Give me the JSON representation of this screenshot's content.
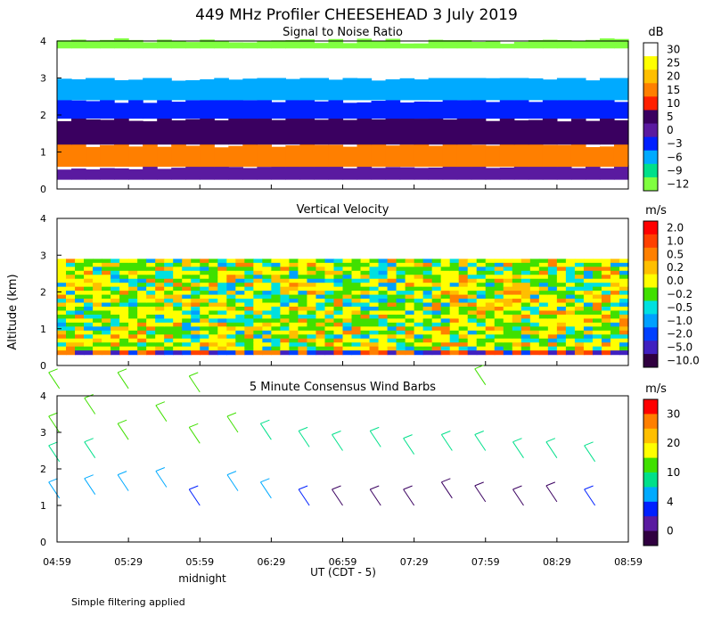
{
  "figure": {
    "title": "449 MHz Profiler CHEESEHEAD  3 July 2019",
    "ylabel": "Altitude (km)",
    "xlabel": "UT  (CDT - 5)",
    "midnight_label": "midnight",
    "footer": "Simple filtering applied"
  },
  "chart_data": [
    {
      "type": "heatmap",
      "title": "Signal to Noise Ratio",
      "colorbar_unit": "dB",
      "colorbar_labels": [
        "30",
        "25",
        "20",
        "15",
        "10",
        "5",
        "0",
        "−3",
        "−6",
        "−9",
        "−12"
      ],
      "colorbar_colors": [
        "#ffffff",
        "#ffff00",
        "#ffbf00",
        "#ff7f00",
        "#ff2000",
        "#3a0060",
        "#5a1aa0",
        "#0020ff",
        "#00aaff",
        "#00e08a",
        "#80ff40"
      ],
      "x_ticks": [
        "04:59",
        "05:29",
        "05:59",
        "06:29",
        "06:59",
        "07:29",
        "07:59",
        "08:29",
        "08:59"
      ],
      "xlim": [
        "04:59",
        "08:59"
      ],
      "y_ticks": [
        "0",
        "1",
        "2",
        "3",
        "4"
      ],
      "ylim": [
        0,
        4
      ],
      "layers": [
        {
          "bottom_km": 0.25,
          "top_km": 0.6,
          "db": 0
        },
        {
          "bottom_km": 0.6,
          "top_km": 1.2,
          "db": 15
        },
        {
          "bottom_km": 1.2,
          "top_km": 1.9,
          "db": 3
        },
        {
          "bottom_km": 1.9,
          "top_km": 2.4,
          "db": -3
        },
        {
          "bottom_km": 2.4,
          "top_km": 3.0,
          "db": -6
        },
        {
          "bottom_km": 3.0,
          "top_km": 3.8,
          "db": 30
        },
        {
          "bottom_km": 3.8,
          "top_km": 4.0,
          "db": -12
        }
      ]
    },
    {
      "type": "heatmap",
      "title": "Vertical Velocity",
      "colorbar_unit": "m/s",
      "colorbar_labels": [
        "2.0",
        "1.0",
        "0.5",
        "0.2",
        "0.0",
        "−0.2",
        "−0.5",
        "−1.0",
        "−2.0",
        "−5.0",
        "−10.0"
      ],
      "colorbar_colors": [
        "#ff0000",
        "#ff4000",
        "#ff8000",
        "#ffbf00",
        "#ffff00",
        "#40e000",
        "#00e0e0",
        "#00a0ff",
        "#0040ff",
        "#4020c0",
        "#300040"
      ],
      "x_ticks": [
        "04:59",
        "05:29",
        "05:59",
        "06:29",
        "06:59",
        "07:29",
        "07:59",
        "08:29",
        "08:59"
      ],
      "xlim": [
        "04:59",
        "08:59"
      ],
      "y_ticks": [
        "0",
        "1",
        "2",
        "3",
        "4"
      ],
      "ylim": [
        0,
        4
      ],
      "data_top_km": 2.9
    },
    {
      "type": "scatter",
      "title": "5 Minute Consensus Wind Barbs",
      "colorbar_unit": "m/s",
      "colorbar_labels": [
        "30",
        "20",
        "10",
        "4",
        "0"
      ],
      "colorbar_colors": [
        "#ff0000",
        "#ff7f00",
        "#ffbf00",
        "#ffff00",
        "#40e000",
        "#00e08a",
        "#00aaff",
        "#0020ff",
        "#5a1aa0",
        "#300040"
      ],
      "x_ticks": [
        "04:59",
        "05:29",
        "05:59",
        "06:29",
        "06:59",
        "07:29",
        "07:59",
        "08:29",
        "08:59"
      ],
      "xlim": [
        "04:59",
        "08:59"
      ],
      "y_ticks": [
        "0",
        "1",
        "2",
        "3",
        "4"
      ],
      "ylim": [
        0,
        4
      ],
      "barbs": [
        {
          "time": "05:00",
          "alt_km": 4.2,
          "speed_ms": 10
        },
        {
          "time": "05:00",
          "alt_km": 3.0,
          "speed_ms": 10
        },
        {
          "time": "05:00",
          "alt_km": 2.2,
          "speed_ms": 6
        },
        {
          "time": "05:00",
          "alt_km": 1.2,
          "speed_ms": 5
        },
        {
          "time": "05:15",
          "alt_km": 3.5,
          "speed_ms": 10
        },
        {
          "time": "05:15",
          "alt_km": 2.3,
          "speed_ms": 6
        },
        {
          "time": "05:15",
          "alt_km": 1.3,
          "speed_ms": 5
        },
        {
          "time": "05:29",
          "alt_km": 4.2,
          "speed_ms": 10
        },
        {
          "time": "05:29",
          "alt_km": 2.8,
          "speed_ms": 9
        },
        {
          "time": "05:29",
          "alt_km": 1.4,
          "speed_ms": 5
        },
        {
          "time": "05:45",
          "alt_km": 3.3,
          "speed_ms": 10
        },
        {
          "time": "05:45",
          "alt_km": 1.5,
          "speed_ms": 5
        },
        {
          "time": "05:59",
          "alt_km": 4.1,
          "speed_ms": 10
        },
        {
          "time": "05:59",
          "alt_km": 2.7,
          "speed_ms": 9
        },
        {
          "time": "05:59",
          "alt_km": 1.0,
          "speed_ms": 3
        },
        {
          "time": "06:15",
          "alt_km": 3.0,
          "speed_ms": 9
        },
        {
          "time": "06:15",
          "alt_km": 1.4,
          "speed_ms": 5
        },
        {
          "time": "06:29",
          "alt_km": 2.8,
          "speed_ms": 8
        },
        {
          "time": "06:29",
          "alt_km": 1.2,
          "speed_ms": 4
        },
        {
          "time": "06:45",
          "alt_km": 2.6,
          "speed_ms": 8
        },
        {
          "time": "06:45",
          "alt_km": 1.0,
          "speed_ms": 3
        },
        {
          "time": "06:59",
          "alt_km": 2.5,
          "speed_ms": 7
        },
        {
          "time": "06:59",
          "alt_km": 1.0,
          "speed_ms": 2
        },
        {
          "time": "07:15",
          "alt_km": 2.6,
          "speed_ms": 7
        },
        {
          "time": "07:15",
          "alt_km": 1.0,
          "speed_ms": 2
        },
        {
          "time": "07:29",
          "alt_km": 2.4,
          "speed_ms": 6
        },
        {
          "time": "07:29",
          "alt_km": 1.0,
          "speed_ms": 2
        },
        {
          "time": "07:45",
          "alt_km": 2.5,
          "speed_ms": 7
        },
        {
          "time": "07:45",
          "alt_km": 1.2,
          "speed_ms": 2
        },
        {
          "time": "07:59",
          "alt_km": 4.3,
          "speed_ms": 10
        },
        {
          "time": "07:59",
          "alt_km": 2.5,
          "speed_ms": 7
        },
        {
          "time": "07:59",
          "alt_km": 1.1,
          "speed_ms": 2
        },
        {
          "time": "08:15",
          "alt_km": 2.3,
          "speed_ms": 7
        },
        {
          "time": "08:15",
          "alt_km": 1.0,
          "speed_ms": 2
        },
        {
          "time": "08:29",
          "alt_km": 2.3,
          "speed_ms": 7
        },
        {
          "time": "08:29",
          "alt_km": 1.1,
          "speed_ms": 2
        },
        {
          "time": "08:45",
          "alt_km": 2.2,
          "speed_ms": 7
        },
        {
          "time": "08:45",
          "alt_km": 1.0,
          "speed_ms": 3
        }
      ]
    }
  ]
}
